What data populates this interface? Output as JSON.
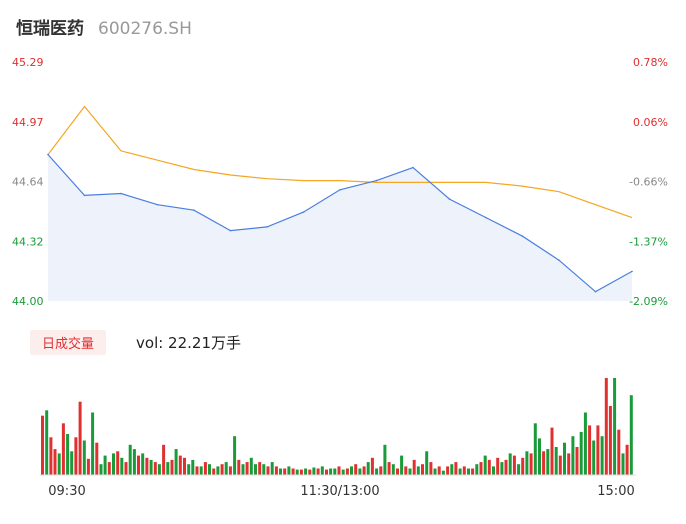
{
  "stock": {
    "name": "恒瑞医药",
    "code": "600276.SH"
  },
  "price_axis": {
    "labels": [
      "45.29",
      "44.97",
      "44.64",
      "44.32",
      "44.00"
    ],
    "colors": [
      "#e03030",
      "#e03030",
      "#888888",
      "#1a9b3a",
      "#1a9b3a"
    ]
  },
  "pct_axis": {
    "labels": [
      "0.78%",
      "0.06%",
      "-0.66%",
      "-1.37%",
      "-2.09%"
    ],
    "colors": [
      "#e03030",
      "#e03030",
      "#888888",
      "#1a9b3a",
      "#1a9b3a"
    ]
  },
  "volume_panel": {
    "period_tab": "日成交量",
    "vol_text": "vol: 22.21万手"
  },
  "time_labels": [
    "09:30",
    "11:30/13:00",
    "15:00"
  ],
  "colors": {
    "price_line": "#4a7fe0",
    "avg_line": "#f5a623",
    "up": "#e03030",
    "down": "#1a9b3a",
    "fill": "#eef3fb"
  },
  "chart_data": {
    "type": "line",
    "title": "",
    "xlabel": "",
    "ylabel": "",
    "ylim": [
      44.0,
      45.29
    ],
    "x": [
      "09:30",
      "09:45",
      "10:00",
      "10:15",
      "10:30",
      "10:45",
      "11:00",
      "11:15",
      "11:30/13:00",
      "13:15",
      "13:30",
      "13:45",
      "14:00",
      "14:15",
      "14:30",
      "14:45",
      "15:00"
    ],
    "series": [
      {
        "name": "price",
        "values": [
          44.79,
          44.57,
          44.58,
          44.52,
          44.49,
          44.38,
          44.4,
          44.48,
          44.6,
          44.65,
          44.72,
          44.55,
          44.45,
          44.35,
          44.22,
          44.05,
          44.16
        ]
      },
      {
        "name": "avg",
        "values": [
          44.79,
          45.05,
          44.81,
          44.76,
          44.71,
          44.68,
          44.66,
          44.65,
          44.65,
          44.64,
          44.64,
          44.64,
          44.64,
          44.62,
          44.59,
          44.52,
          44.45
        ]
      }
    ],
    "volume": {
      "values": [
        55,
        60,
        35,
        24,
        20,
        48,
        38,
        22,
        35,
        68,
        32,
        15,
        58,
        30,
        10,
        18,
        12,
        20,
        22,
        16,
        12,
        28,
        24,
        18,
        20,
        16,
        14,
        12,
        10,
        28,
        12,
        14,
        24,
        18,
        16,
        10,
        14,
        8,
        8,
        12,
        10,
        6,
        8,
        10,
        12,
        8,
        36,
        14,
        10,
        12,
        16,
        10,
        12,
        10,
        8,
        12,
        8,
        6,
        6,
        8,
        6,
        5,
        5,
        6,
        5,
        7,
        6,
        8,
        5,
        6,
        6,
        8,
        5,
        6,
        8,
        10,
        6,
        8,
        12,
        16,
        6,
        8,
        28,
        12,
        10,
        6,
        18,
        8,
        6,
        14,
        8,
        10,
        22,
        12,
        6,
        8,
        4,
        8,
        10,
        12,
        6,
        8,
        6,
        6,
        10,
        12,
        18,
        14,
        8,
        16,
        12,
        14,
        20,
        18,
        10,
        16,
        22,
        20,
        48,
        34,
        22,
        24,
        44,
        26,
        18,
        30,
        20,
        36,
        26,
        40,
        58,
        46,
        32,
        46,
        36,
        90,
        64,
        90,
        42,
        20,
        28,
        74
      ],
      "up": [
        1,
        0,
        1,
        1,
        0,
        1,
        0,
        0,
        1,
        1,
        0,
        1,
        0,
        1,
        0,
        0,
        1,
        0,
        1,
        0,
        1,
        0,
        0,
        1,
        0,
        1,
        0,
        1,
        0,
        1,
        0,
        1,
        0,
        1,
        1,
        0,
        0,
        1,
        0,
        1,
        0,
        1,
        0,
        1,
        0,
        1,
        0,
        1,
        0,
        1,
        0,
        0,
        1,
        0,
        1,
        0,
        1,
        0,
        1,
        0,
        1,
        0,
        1,
        0,
        1,
        0,
        1,
        0,
        1,
        0,
        0,
        1,
        0,
        1,
        0,
        1,
        0,
        1,
        0,
        1,
        0,
        1,
        0,
        1,
        0,
        1,
        0,
        1,
        0,
        1,
        0,
        1,
        0,
        1,
        0,
        1,
        0,
        1,
        0,
        1,
        0,
        1,
        0,
        1,
        0,
        1,
        0,
        1,
        0,
        1,
        0,
        1,
        0,
        1,
        0,
        1,
        0,
        1,
        0,
        0,
        1,
        0,
        1,
        0,
        1,
        0,
        1,
        0,
        1,
        0,
        0,
        1,
        0,
        1,
        0,
        1,
        1,
        0,
        1,
        0,
        1,
        0
      ]
    }
  }
}
